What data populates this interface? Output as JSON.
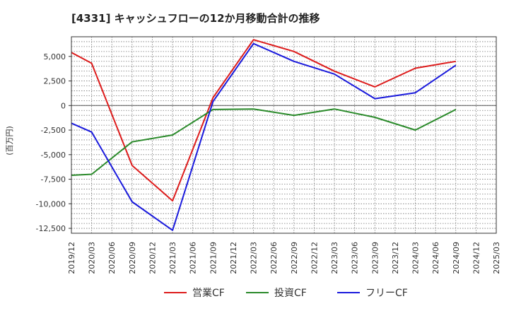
{
  "chart_data": {
    "type": "line",
    "title": "[4331]  キャッシュフローの12か月移動合計の推移",
    "xlabel": "",
    "ylabel": "(百万円)",
    "x": [
      "2019/12",
      "2020/03",
      "2020/06",
      "2020/09",
      "2020/12",
      "2021/03",
      "2021/06",
      "2021/09",
      "2021/12",
      "2022/03",
      "2022/06",
      "2022/09",
      "2022/12",
      "2023/03",
      "2023/06",
      "2023/09",
      "2023/12",
      "2024/03",
      "2024/06",
      "2024/09",
      "2024/12",
      "2025/03"
    ],
    "ylim": [
      -13000,
      7000
    ],
    "yticks": [
      5000,
      2500,
      0,
      -2500,
      -5000,
      -7500,
      -10000,
      -12500
    ],
    "ytick_labels": [
      "5,000",
      "2,500",
      "0",
      "-2,500",
      "-5,000",
      "-7,500",
      "-10,000",
      "-12,500"
    ],
    "grid": true,
    "legend_position": "bottom",
    "series": [
      {
        "name": "営業CF",
        "color": "#dd1c1c",
        "points": [
          {
            "x": "2019/12",
            "y": 5400
          },
          {
            "x": "2020/03",
            "y": 4300
          },
          {
            "x": "2020/09",
            "y": -6100
          },
          {
            "x": "2021/03",
            "y": -9700
          },
          {
            "x": "2021/09",
            "y": 800
          },
          {
            "x": "2022/03",
            "y": 6700
          },
          {
            "x": "2022/09",
            "y": 5500
          },
          {
            "x": "2023/03",
            "y": 3500
          },
          {
            "x": "2023/09",
            "y": 1900
          },
          {
            "x": "2024/03",
            "y": 3800
          },
          {
            "x": "2024/09",
            "y": 4500
          }
        ]
      },
      {
        "name": "投資CF",
        "color": "#2a8a2a",
        "points": [
          {
            "x": "2019/12",
            "y": -7100
          },
          {
            "x": "2020/03",
            "y": -7000
          },
          {
            "x": "2020/09",
            "y": -3700
          },
          {
            "x": "2021/03",
            "y": -3000
          },
          {
            "x": "2021/09",
            "y": -400
          },
          {
            "x": "2022/03",
            "y": -350
          },
          {
            "x": "2022/09",
            "y": -1000
          },
          {
            "x": "2023/03",
            "y": -350
          },
          {
            "x": "2023/09",
            "y": -1200
          },
          {
            "x": "2024/03",
            "y": -2500
          },
          {
            "x": "2024/09",
            "y": -400
          }
        ]
      },
      {
        "name": "フリーCF",
        "color": "#1a1adc",
        "points": [
          {
            "x": "2019/12",
            "y": -1800
          },
          {
            "x": "2020/03",
            "y": -2700
          },
          {
            "x": "2020/09",
            "y": -9800
          },
          {
            "x": "2021/03",
            "y": -12700
          },
          {
            "x": "2021/09",
            "y": 400
          },
          {
            "x": "2022/03",
            "y": 6300
          },
          {
            "x": "2022/09",
            "y": 4500
          },
          {
            "x": "2023/03",
            "y": 3200
          },
          {
            "x": "2023/09",
            "y": 700
          },
          {
            "x": "2024/03",
            "y": 1300
          },
          {
            "x": "2024/09",
            "y": 4100
          }
        ]
      }
    ]
  }
}
